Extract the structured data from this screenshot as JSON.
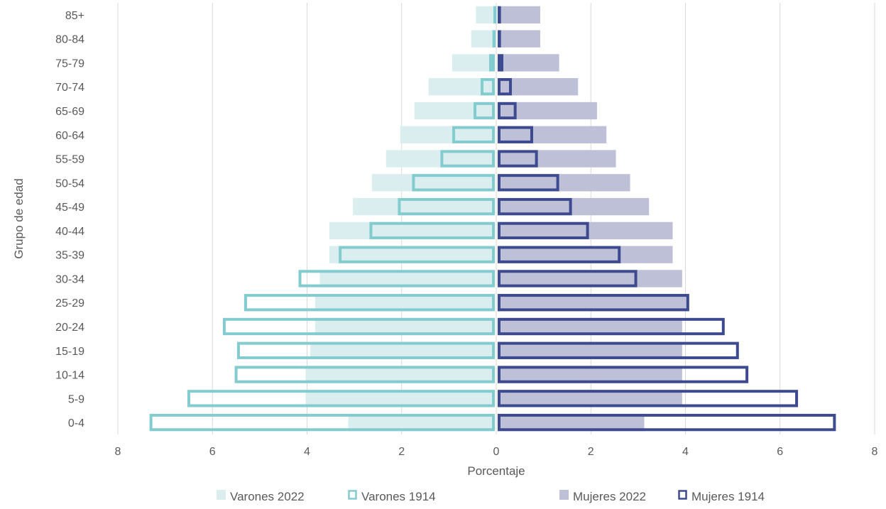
{
  "chart_data": {
    "type": "bar",
    "orientation": "horizontal",
    "subtype": "population-pyramid",
    "xlabel": "Porcentaje",
    "ylabel": "Grupo de edad",
    "xlim": [
      -8,
      8
    ],
    "xticks": [
      -8,
      -6,
      -4,
      -2,
      0,
      2,
      4,
      6,
      8
    ],
    "xtick_labels": [
      "8",
      "6",
      "4",
      "2",
      "0",
      "2",
      "4",
      "6",
      "8"
    ],
    "grid": "vertical",
    "legend_position": "bottom",
    "categories": [
      "0-4",
      "5-9",
      "10-14",
      "15-19",
      "20-24",
      "25-29",
      "30-34",
      "35-39",
      "40-44",
      "45-49",
      "50-54",
      "55-59",
      "60-64",
      "65-69",
      "70-74",
      "75-79",
      "80-84",
      "85+"
    ],
    "series": [
      {
        "name": "Varones 2022",
        "side": "left",
        "style": "filled",
        "color": "#daeef0",
        "values": [
          3.1,
          4.0,
          4.0,
          3.9,
          3.8,
          3.8,
          3.7,
          3.5,
          3.5,
          3.0,
          2.6,
          2.3,
          2.0,
          1.7,
          1.4,
          0.9,
          0.5,
          0.4
        ]
      },
      {
        "name": "Varones 1914",
        "side": "left",
        "style": "outline",
        "color": "#82cbcf",
        "values": [
          7.3,
          6.5,
          5.5,
          5.45,
          5.75,
          5.3,
          4.15,
          3.3,
          2.65,
          2.05,
          1.75,
          1.15,
          0.9,
          0.45,
          0.3,
          0.12,
          0.05,
          0.03
        ]
      },
      {
        "name": "Mujeres 2022",
        "side": "right",
        "style": "filled",
        "color": "#bdc0d7",
        "values": [
          3.1,
          3.9,
          3.9,
          3.9,
          3.9,
          4.0,
          3.9,
          3.7,
          3.7,
          3.2,
          2.8,
          2.5,
          2.3,
          2.1,
          1.7,
          1.3,
          0.9,
          0.9
        ]
      },
      {
        "name": "Mujeres 1914",
        "side": "right",
        "style": "outline",
        "color": "#3d4a8f",
        "values": [
          7.15,
          6.35,
          5.3,
          5.1,
          4.8,
          4.05,
          2.95,
          2.6,
          1.93,
          1.57,
          1.3,
          0.85,
          0.75,
          0.4,
          0.3,
          0.12,
          0.07,
          0.07
        ]
      }
    ]
  }
}
